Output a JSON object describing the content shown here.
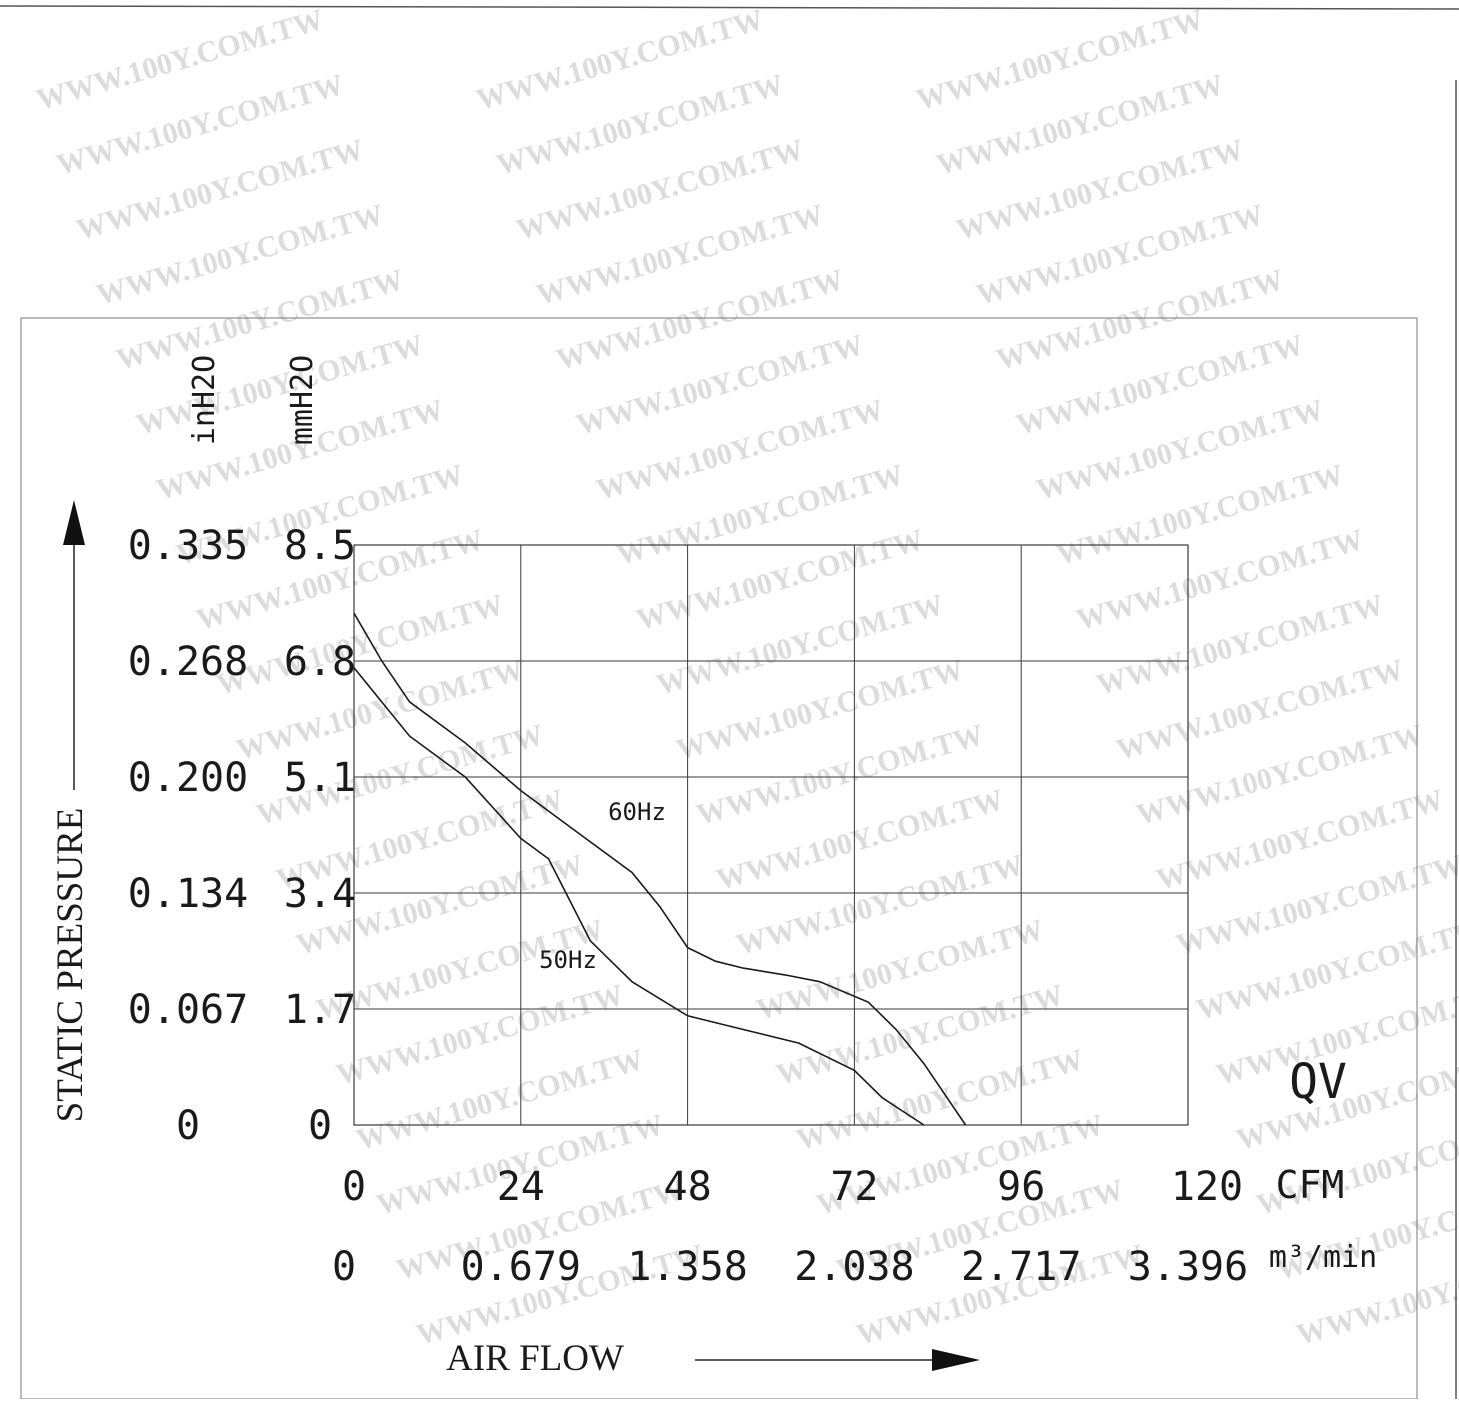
{
  "watermark": "WWW.100Y.COM.TW",
  "colors": {
    "ink": "#1a1a1a",
    "grid": "#3a3a3a",
    "watermark": "#dcdcdc",
    "background": "#ffffff"
  },
  "units": {
    "in_h2o": "inH2O",
    "mm_h2o": "mmH2O",
    "cfm": "CFM",
    "m3min": "m³/min"
  },
  "axis_titles": {
    "y": "STATIC PRESSURE",
    "x": "AIR FLOW"
  },
  "corner_label": "QV",
  "chart_data": {
    "type": "line",
    "title": "",
    "xlabel": "AIR FLOW",
    "ylabel": "STATIC PRESSURE",
    "x_unit": "CFM",
    "y_unit": "mmH2O",
    "xlim": [
      0,
      120
    ],
    "ylim": [
      0,
      8.5
    ],
    "grid": true,
    "y_ticks_mm": [
      "0",
      "1.7",
      "3.4",
      "5.1",
      "6.8",
      "8.5"
    ],
    "y_ticks_in": [
      "0",
      "0.067",
      "0.134",
      "0.200",
      "0.268",
      "0.335"
    ],
    "x_ticks_cfm": [
      "0",
      "24",
      "48",
      "72",
      "96",
      "120"
    ],
    "x_ticks_m3min": [
      "0",
      "0.679",
      "1.358",
      "2.038",
      "2.717",
      "3.396"
    ],
    "series": [
      {
        "name": "60Hz",
        "points": [
          [
            0,
            7.5
          ],
          [
            4,
            6.8
          ],
          [
            8,
            6.2
          ],
          [
            16,
            5.6
          ],
          [
            24,
            4.9
          ],
          [
            32,
            4.3
          ],
          [
            40,
            3.7
          ],
          [
            44,
            3.2
          ],
          [
            48,
            2.6
          ],
          [
            52,
            2.4
          ],
          [
            56,
            2.3
          ],
          [
            62,
            2.2
          ],
          [
            67,
            2.1
          ],
          [
            74,
            1.8
          ],
          [
            78,
            1.4
          ],
          [
            82,
            0.9
          ],
          [
            88,
            0
          ]
        ]
      },
      {
        "name": "50Hz",
        "points": [
          [
            0,
            6.7
          ],
          [
            8,
            5.7
          ],
          [
            16,
            5.1
          ],
          [
            24,
            4.2
          ],
          [
            28,
            3.9
          ],
          [
            34,
            2.7
          ],
          [
            40,
            2.1
          ],
          [
            48,
            1.6
          ],
          [
            56,
            1.4
          ],
          [
            64,
            1.2
          ],
          [
            72,
            0.8
          ],
          [
            76,
            0.4
          ],
          [
            82,
            0
          ]
        ]
      }
    ]
  }
}
